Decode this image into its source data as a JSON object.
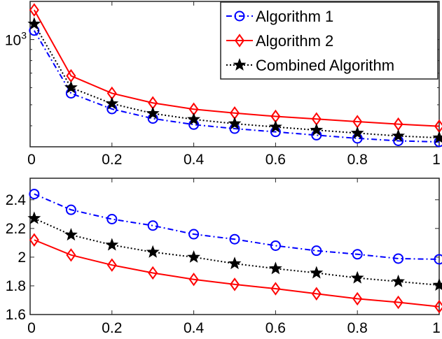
{
  "chart_data": [
    {
      "type": "line",
      "yscale": "log",
      "x": [
        0.01,
        0.1,
        0.2,
        0.3,
        0.4,
        0.5,
        0.6,
        0.7,
        0.8,
        0.9,
        1.0
      ],
      "xlim": [
        0,
        1
      ],
      "ylim": [
        320,
        1500
      ],
      "xticks": [
        0,
        0.2,
        0.4,
        0.6,
        0.8,
        1
      ],
      "xtick_labels": [
        "0",
        "0.2",
        "0.4",
        "0.6",
        "0.8",
        "1"
      ],
      "yticks": [
        1000
      ],
      "ytick_labels": [
        "10³"
      ],
      "ytick_base": "10",
      "ytick_exp": "3",
      "series": [
        {
          "name": "Algorithm 1",
          "color": "#0000ff",
          "marker": "circle",
          "linestyle": "dashdot",
          "values": [
            1100,
            565,
            478,
            432,
            405,
            388,
            375,
            362,
            350,
            341,
            337
          ]
        },
        {
          "name": "Algorithm 2",
          "color": "#ff0000",
          "marker": "diamond",
          "linestyle": "solid",
          "values": [
            1370,
            680,
            565,
            510,
            477,
            458,
            442,
            430,
            418,
            407,
            398
          ]
        },
        {
          "name": "Combined Algorithm",
          "color": "#000000",
          "marker": "star",
          "linestyle": "dotted",
          "values": [
            1180,
            600,
            506,
            456,
            428,
            409,
            395,
            382,
            370,
            359,
            352
          ]
        }
      ],
      "legend": {
        "position": "top-right",
        "entries": [
          "Algorithm 1",
          "Algorithm 2",
          "Combined Algorithm"
        ]
      }
    },
    {
      "type": "line",
      "x": [
        0.01,
        0.1,
        0.2,
        0.3,
        0.4,
        0.5,
        0.6,
        0.7,
        0.8,
        0.9,
        1.0
      ],
      "xlim": [
        0,
        1
      ],
      "ylim": [
        1.6,
        2.55
      ],
      "xticks": [
        0,
        0.2,
        0.4,
        0.6,
        0.8,
        1
      ],
      "xtick_labels": [
        "0",
        "0.2",
        "0.4",
        "0.6",
        "0.8",
        "1"
      ],
      "yticks": [
        1.6,
        1.8,
        2.0,
        2.2,
        2.4
      ],
      "ytick_labels": [
        "1.6",
        "1.8",
        "2",
        "2.2",
        "2.4"
      ],
      "series": [
        {
          "name": "Algorithm 1",
          "color": "#0000ff",
          "marker": "circle",
          "linestyle": "dashdot",
          "values": [
            2.44,
            2.33,
            2.265,
            2.22,
            2.16,
            2.125,
            2.08,
            2.045,
            2.02,
            1.99,
            1.985
          ]
        },
        {
          "name": "Algorithm 2",
          "color": "#ff0000",
          "marker": "diamond",
          "linestyle": "solid",
          "values": [
            2.12,
            2.015,
            1.945,
            1.89,
            1.845,
            1.81,
            1.78,
            1.745,
            1.71,
            1.685,
            1.655
          ]
        },
        {
          "name": "Combined Algorithm",
          "color": "#000000",
          "marker": "star",
          "linestyle": "dotted",
          "values": [
            2.27,
            2.155,
            2.085,
            2.035,
            2.0,
            1.955,
            1.92,
            1.89,
            1.855,
            1.83,
            1.805
          ]
        }
      ]
    }
  ]
}
